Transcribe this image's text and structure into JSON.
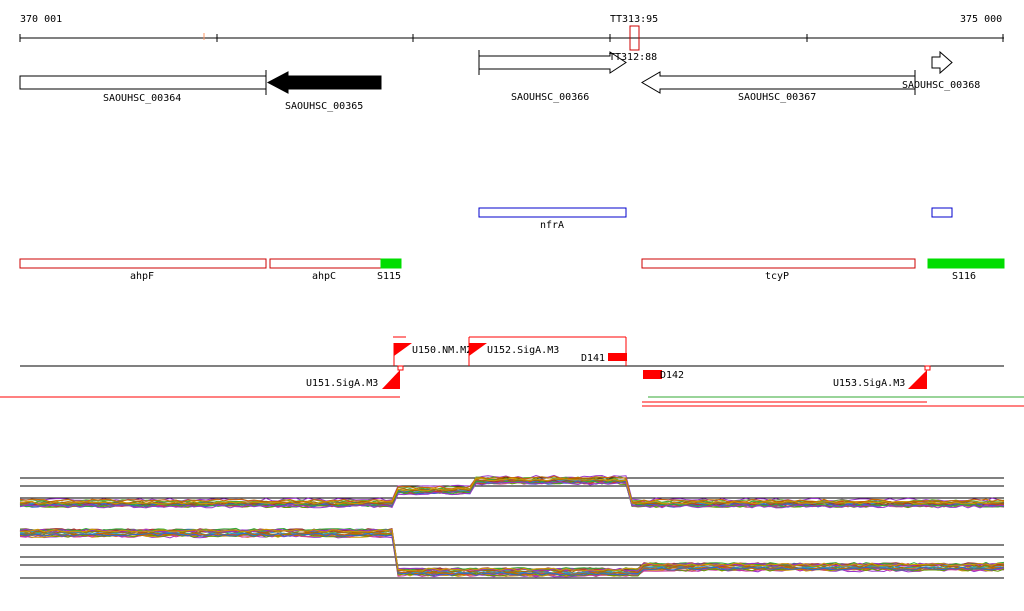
{
  "ruler": {
    "start_label": "370 001",
    "end_label": "375 000"
  },
  "terminators": [
    {
      "label": "TT313:95"
    },
    {
      "label": "TT312:88"
    }
  ],
  "genes": [
    {
      "label": "SAOUHSC_00364",
      "strand": "+",
      "fill": "#ffffff"
    },
    {
      "label": "SAOUHSC_00365",
      "strand": "-",
      "fill": "#000000"
    },
    {
      "label": "SAOUHSC_00366",
      "strand": "+",
      "fill": "#ffffff"
    },
    {
      "label": "SAOUHSC_00367",
      "strand": "-",
      "fill": "#ffffff"
    },
    {
      "label": "SAOUHSC_00368",
      "strand": "+",
      "fill": "#ffffff"
    }
  ],
  "regulons": [
    {
      "label": "nfrA",
      "color": "#0000cc"
    },
    {
      "label": "",
      "color": "#0000cc"
    }
  ],
  "operons": [
    {
      "label": "ahpF",
      "color": "#cc0000",
      "filled": false
    },
    {
      "label": "ahpC",
      "color": "#cc0000",
      "filled": false
    },
    {
      "label": "S115",
      "color": "#00dd00",
      "filled": true
    },
    {
      "label": "tcyP",
      "color": "#cc0000",
      "filled": false
    },
    {
      "label": "S116",
      "color": "#00dd00",
      "filled": true
    }
  ],
  "promoters": [
    {
      "label": "U150.NM.M2",
      "strand": "+"
    },
    {
      "label": "U152.SigA.M3",
      "strand": "+"
    },
    {
      "label": "D141",
      "strand": "+"
    },
    {
      "label": "U151.SigA.M3",
      "strand": "-"
    },
    {
      "label": "D142",
      "strand": "-"
    },
    {
      "label": "U153.SigA.M3",
      "strand": "-"
    }
  ],
  "colors": {
    "accent_red": "#ff0000",
    "operon_red": "#cc0000",
    "regulon_blue": "#0000cc",
    "green": "#00dd00",
    "line_green": "#33aa33"
  }
}
